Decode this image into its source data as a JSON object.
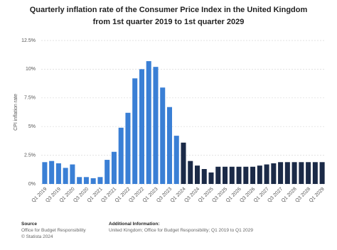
{
  "chart_data": {
    "type": "bar",
    "title": "Quarterly inflation rate of the Consumer Price Index in the United Kingdom from 1st quarter 2019 to 1st quarter 2029",
    "y_label": "CPI inflation rate",
    "categories": [
      "Q1 2019",
      null,
      "Q3 2019",
      null,
      "Q1 2020",
      null,
      "Q3 2020",
      null,
      "Q1 2021",
      null,
      "Q3 2021",
      null,
      "Q1 2022",
      null,
      "Q3 2022",
      null,
      "Q1 2023",
      null,
      "Q3 2023",
      null,
      "Q1 2024",
      null,
      "Q3 2024",
      null,
      "Q1 2025",
      null,
      "Q3 2025",
      null,
      "Q1 2026",
      null,
      "Q3 2026",
      null,
      "Q1 2027",
      null,
      "Q3 2027",
      null,
      "Q1 2028",
      null,
      "Q3 2028",
      null,
      "Q1 2029"
    ],
    "values": [
      1.9,
      2.0,
      1.8,
      1.4,
      1.7,
      0.6,
      0.6,
      0.5,
      0.6,
      2.1,
      2.8,
      4.9,
      6.2,
      9.2,
      10.0,
      10.7,
      10.2,
      8.4,
      6.7,
      4.2,
      3.6,
      2.0,
      1.6,
      1.3,
      1.0,
      1.5,
      1.5,
      1.5,
      1.5,
      1.5,
      1.5,
      1.6,
      1.7,
      1.8,
      1.9,
      1.9,
      1.9,
      1.9,
      1.9,
      1.9,
      1.9
    ],
    "colors": [
      "#3a7fd5",
      "#3a7fd5",
      "#3a7fd5",
      "#3a7fd5",
      "#3a7fd5",
      "#3a7fd5",
      "#3a7fd5",
      "#3a7fd5",
      "#3a7fd5",
      "#3a7fd5",
      "#3a7fd5",
      "#3a7fd5",
      "#3a7fd5",
      "#3a7fd5",
      "#3a7fd5",
      "#3a7fd5",
      "#3a7fd5",
      "#3a7fd5",
      "#3a7fd5",
      "#3a7fd5",
      "#1b2a47",
      "#1b2a47",
      "#1b2a47",
      "#1b2a47",
      "#1b2a47",
      "#1b2a47",
      "#1b2a47",
      "#1b2a47",
      "#1b2a47",
      "#1b2a47",
      "#1b2a47",
      "#1b2a47",
      "#1b2a47",
      "#1b2a47",
      "#1b2a47",
      "#1b2a47",
      "#1b2a47",
      "#1b2a47",
      "#1b2a47",
      "#1b2a47",
      "#1b2a47"
    ],
    "ylim": [
      0,
      12.5
    ],
    "yticks": [
      {
        "value": 0,
        "label": "0%"
      },
      {
        "value": 2.5,
        "label": "2.5%"
      },
      {
        "value": 5,
        "label": "5%"
      },
      {
        "value": 7.5,
        "label": "7.5%"
      },
      {
        "value": 10,
        "label": "10%"
      },
      {
        "value": 12.5,
        "label": "12.5%"
      }
    ],
    "grid": true
  },
  "footer": {
    "source_heading": "Source",
    "source_lines": [
      "Office for Budget Responsibility",
      "© Statista 2024"
    ],
    "info_heading": "Additional Information:",
    "info_text": "United Kingdom; Office for Budget Responsibility; Q1 2019 to Q1 2029"
  }
}
